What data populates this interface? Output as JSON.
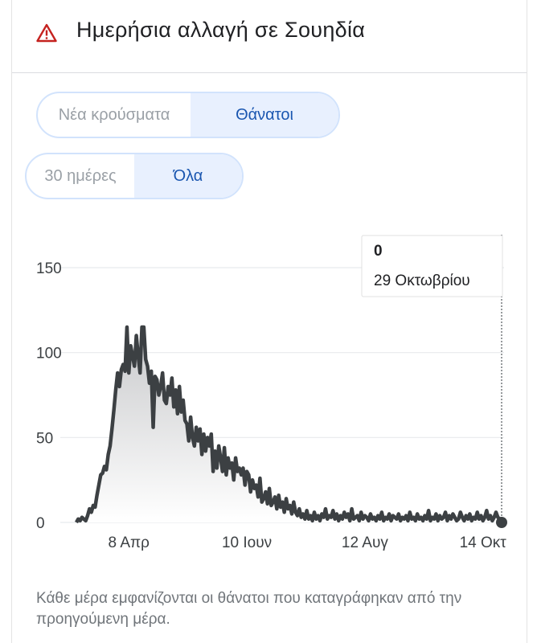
{
  "header": {
    "title": "Ημερήσια αλλαγή σε Σουηδία",
    "icon": "warning-icon",
    "icon_color": "#c5221f"
  },
  "metric_toggle": {
    "options": [
      "Νέα κρούσματα",
      "Θάνατοι"
    ],
    "selected": "Θάνατοι"
  },
  "range_toggle": {
    "options": [
      "30 ημέρες",
      "Όλα"
    ],
    "selected": "Όλα"
  },
  "tooltip": {
    "value": "0",
    "date": "29 Οκτωβρίου"
  },
  "footnote": "Κάθε μέρα εμφανίζονται οι θάνατοι που καταγράφηκαν από την προηγούμενη μέρα.",
  "chart_data": {
    "type": "area",
    "title": "",
    "xlabel": "",
    "ylabel": "",
    "ylim": [
      0,
      150
    ],
    "yticks": [
      0,
      50,
      100,
      150
    ],
    "xticks": [
      {
        "label": "8 Απρ",
        "day": 28
      },
      {
        "label": "10 Ιουν",
        "day": 91
      },
      {
        "label": "12 Αυγ",
        "day": 154
      },
      {
        "label": "14 Οκτ",
        "day": 217
      }
    ],
    "grid": true,
    "line_color": "#3c4043",
    "series": [
      {
        "values": [
          0,
          2,
          1,
          3,
          2,
          1,
          4,
          8,
          6,
          10,
          9,
          16,
          22,
          28,
          29,
          33,
          31,
          40,
          45,
          55,
          66,
          78,
          88,
          80,
          90,
          93,
          89,
          115,
          88,
          104,
          98,
          92,
          110,
          98,
          88,
          115,
          115,
          96,
          92,
          82,
          89,
          56,
          86,
          84,
          75,
          80,
          88,
          72,
          70,
          80,
          75,
          85,
          68,
          78,
          64,
          80,
          65,
          72,
          60,
          58,
          48,
          62,
          50,
          45,
          56,
          48,
          55,
          40,
          52,
          42,
          50,
          45,
          52,
          30,
          42,
          32,
          45,
          38,
          30,
          44,
          28,
          38,
          32,
          35,
          25,
          38,
          30,
          32,
          28,
          32,
          22,
          30,
          28,
          18,
          25,
          20,
          22,
          15,
          26,
          12,
          14,
          18,
          11,
          20,
          10,
          12,
          15,
          8,
          16,
          9,
          12,
          6,
          14,
          8,
          10,
          5,
          12,
          6,
          4,
          8,
          3,
          5,
          2,
          7,
          2,
          4,
          1,
          6,
          2,
          4,
          1,
          5,
          3,
          8,
          2,
          4,
          3,
          7,
          2,
          5,
          1,
          4,
          2,
          6,
          3,
          5,
          1,
          8,
          2,
          3,
          4,
          1,
          6,
          2,
          4,
          3,
          1,
          5,
          2,
          3,
          1,
          4,
          2,
          6,
          1,
          3,
          2,
          5,
          1,
          4,
          3,
          2,
          5,
          1,
          3,
          2,
          4,
          1,
          6,
          2,
          3,
          1,
          5,
          2,
          3,
          1,
          4,
          2,
          7,
          1,
          3,
          2,
          5,
          1,
          4,
          2,
          3,
          6,
          1,
          4,
          2,
          5,
          3,
          1,
          2,
          6,
          3,
          1,
          4,
          2,
          5,
          1,
          3,
          2,
          6,
          2,
          4,
          1,
          3,
          7,
          2,
          4,
          1,
          3,
          6,
          3,
          2,
          0
        ]
      }
    ]
  }
}
